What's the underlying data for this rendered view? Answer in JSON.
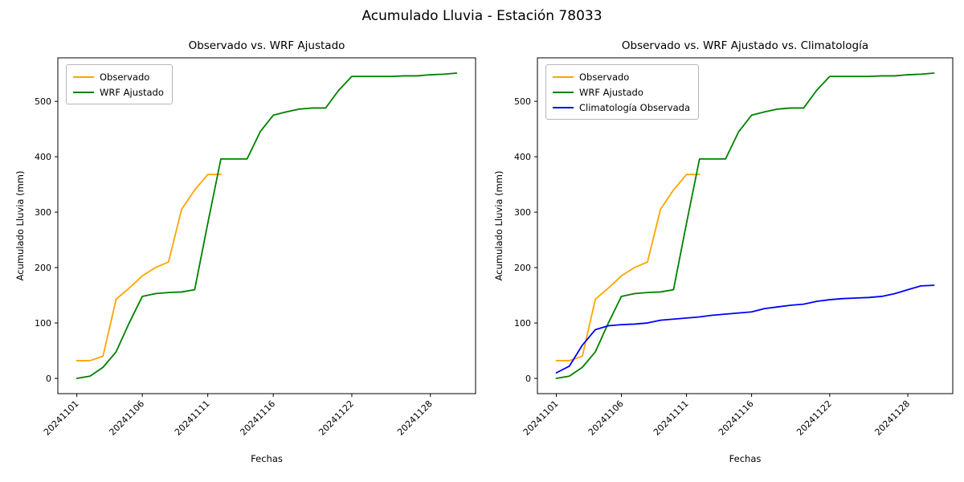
{
  "figure": {
    "title": "Acumulado Lluvia - Estación 78033",
    "background": "#ffffff"
  },
  "chart_data": [
    {
      "type": "line",
      "title": "Observado vs. WRF Ajustado",
      "xlabel": "Fechas",
      "ylabel": "Acumulado Lluvia (mm)",
      "ylim": [
        -27.5,
        578.5
      ],
      "yticks": [
        0,
        100,
        200,
        300,
        400,
        500
      ],
      "grid": false,
      "legend_position": "upper-left",
      "x_categories": [
        "20241101",
        "20241102",
        "20241103",
        "20241104",
        "20241105",
        "20241106",
        "20241107",
        "20241108",
        "20241109",
        "20241110",
        "20241111",
        "20241112",
        "20241113",
        "20241114",
        "20241115",
        "20241116",
        "20241117",
        "20241118",
        "20241119",
        "20241120",
        "20241121",
        "20241122",
        "20241123",
        "20241124",
        "20241125",
        "20241126",
        "20241127",
        "20241128",
        "20241129",
        "20241130"
      ],
      "xtick_indices": [
        0,
        5,
        10,
        15,
        21,
        27
      ],
      "xtick_labels": [
        "20241101",
        "20241106",
        "20241111",
        "20241116",
        "20241122",
        "20241128"
      ],
      "series": [
        {
          "name": "Observado",
          "color": "#ffa500",
          "values": [
            32,
            32,
            40,
            143,
            163,
            185,
            200,
            210,
            305,
            340,
            368,
            368
          ]
        },
        {
          "name": "WRF Ajustado",
          "color": "#008000",
          "values": [
            0,
            4,
            20,
            48,
            100,
            148,
            153,
            155,
            156,
            160,
            280,
            396,
            396,
            396,
            445,
            475,
            481,
            486,
            488,
            488,
            520,
            545,
            545,
            545,
            545,
            546,
            546,
            548,
            549,
            551
          ]
        }
      ]
    },
    {
      "type": "line",
      "title": "Observado vs. WRF Ajustado vs. Climatología",
      "xlabel": "Fechas",
      "ylabel": "Acumulado Lluvia (mm)",
      "ylim": [
        -27.5,
        578.5
      ],
      "yticks": [
        0,
        100,
        200,
        300,
        400,
        500
      ],
      "grid": false,
      "legend_position": "upper-left",
      "x_categories": [
        "20241101",
        "20241102",
        "20241103",
        "20241104",
        "20241105",
        "20241106",
        "20241107",
        "20241108",
        "20241109",
        "20241110",
        "20241111",
        "20241112",
        "20241113",
        "20241114",
        "20241115",
        "20241116",
        "20241117",
        "20241118",
        "20241119",
        "20241120",
        "20241121",
        "20241122",
        "20241123",
        "20241124",
        "20241125",
        "20241126",
        "20241127",
        "20241128",
        "20241129",
        "20241130"
      ],
      "xtick_indices": [
        0,
        5,
        10,
        15,
        21,
        27
      ],
      "xtick_labels": [
        "20241101",
        "20241106",
        "20241111",
        "20241116",
        "20241122",
        "20241128"
      ],
      "series": [
        {
          "name": "Observado",
          "color": "#ffa500",
          "values": [
            32,
            32,
            40,
            143,
            163,
            185,
            200,
            210,
            305,
            340,
            368,
            368
          ]
        },
        {
          "name": "WRF Ajustado",
          "color": "#008000",
          "values": [
            0,
            4,
            20,
            48,
            100,
            148,
            153,
            155,
            156,
            160,
            280,
            396,
            396,
            396,
            445,
            475,
            481,
            486,
            488,
            488,
            520,
            545,
            545,
            545,
            545,
            546,
            546,
            548,
            549,
            551
          ]
        },
        {
          "name": "Climatología Observada",
          "color": "#0000ff",
          "values": [
            10,
            22,
            60,
            88,
            95,
            97,
            98,
            100,
            105,
            107,
            109,
            111,
            114,
            116,
            118,
            120,
            126,
            129,
            132,
            134,
            139,
            142,
            144,
            145,
            146,
            148,
            153,
            160,
            167,
            168
          ]
        }
      ]
    }
  ]
}
